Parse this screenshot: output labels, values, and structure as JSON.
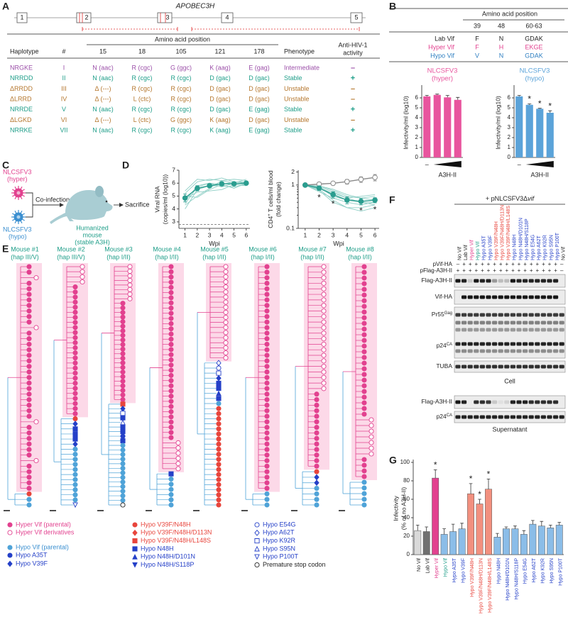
{
  "panel_labels": [
    "A",
    "B",
    "C",
    "D",
    "E",
    "F",
    "G"
  ],
  "A": {
    "gene": "APOBEC3H",
    "exons": [
      "1",
      "2",
      "3",
      "4",
      "5"
    ],
    "table": {
      "columns": [
        "Haplotype",
        "#",
        "Amino acid position",
        "Phenotype",
        [
          "Anti-HIV-1",
          "activity"
        ]
      ],
      "positions": [
        "15",
        "18",
        "105",
        "121",
        "178"
      ],
      "rows": [
        {
          "cells": [
            "NRGKE",
            "I",
            "N (aac)",
            "R (cgc)",
            "G (ggc)",
            "K (aag)",
            "E (gag)",
            "Intermediate",
            "–"
          ],
          "color": "#9b4fa8"
        },
        {
          "cells": [
            "NRRDD",
            "II",
            "N (aac)",
            "R (cgc)",
            "R (cgc)",
            "D (gac)",
            "D (gac)",
            "Stable",
            "+"
          ],
          "color": "#1f9e89"
        },
        {
          "cells": [
            "ΔRRDD",
            "III",
            "Δ (---)",
            "R (cgc)",
            "R (cgc)",
            "D (gac)",
            "D (gac)",
            "Unstable",
            "–"
          ],
          "color": "#b5772e"
        },
        {
          "cells": [
            "ΔLRRD",
            "IV",
            "Δ (---)",
            "L (ctc)",
            "R (cgc)",
            "D (gac)",
            "D (gac)",
            "Unstable",
            "–"
          ],
          "color": "#b5772e"
        },
        {
          "cells": [
            "NRRDE",
            "V",
            "N (aac)",
            "R (cgc)",
            "R (cgc)",
            "D (gac)",
            "E (gag)",
            "Stable",
            "+"
          ],
          "color": "#1f9e89"
        },
        {
          "cells": [
            "ΔLGKD",
            "VI",
            "Δ (---)",
            "L (ctc)",
            "G (ggc)",
            "K (aag)",
            "D (gac)",
            "Unstable",
            "–"
          ],
          "color": "#b5772e"
        },
        {
          "cells": [
            "NRRKE",
            "VII",
            "N (aac)",
            "R (cgc)",
            "R (cgc)",
            "K (aag)",
            "E (gag)",
            "Stable",
            "+"
          ],
          "color": "#1f9e89"
        }
      ]
    }
  },
  "B": {
    "header": "Amino acid position",
    "positions": [
      "39",
      "48",
      "60-63"
    ],
    "rows": [
      {
        "cells": [
          "Lab Vif",
          "F",
          "N",
          "GDAK"
        ],
        "color": "#222222"
      },
      {
        "cells": [
          "Hyper Vif",
          "F",
          "H",
          "EKGE"
        ],
        "color": "#e2418f"
      },
      {
        "cells": [
          "Hypo Vif",
          "V",
          "N",
          "GDAK"
        ],
        "color": "#2f7fc1"
      }
    ]
  },
  "C": {
    "virus_hyper": [
      "NLCSFV3",
      "(hyper)"
    ],
    "virus_hypo": [
      "NLCSFV3",
      "(hypo)"
    ],
    "coinfection": "Co-infection",
    "sacrifice": "Sacrifice",
    "mouse": [
      "Humanized",
      "mouse",
      "(stable A3H)"
    ]
  },
  "E": {
    "mice": [
      {
        "name": "Mouse #1",
        "hap": "(hap III/V)"
      },
      {
        "name": "Mouse #2",
        "hap": "(hap III/V)"
      },
      {
        "name": "Mouse #3",
        "hap": "(hap I/II)"
      },
      {
        "name": "Mouse #4",
        "hap": "(hap I/II)"
      },
      {
        "name": "Mouse #5",
        "hap": "(hap I/II)"
      },
      {
        "name": "Mouse #6",
        "hap": "(hap I/II)"
      },
      {
        "name": "Mouse #7",
        "hap": "(hap I/II)"
      },
      {
        "name": "Mouse #8",
        "hap": "(hap I/II)"
      }
    ],
    "legend": [
      "Hyper Vif (parental)",
      "Hyper Vif derivatives",
      "Hypo Vif (parental)",
      "Hypo A35T",
      "Hypo V39F",
      "Hypo V39F/N48H",
      "Hypo V39F/N48H/D113N",
      "Hypo V39F/N48H/L148S",
      "Hypo N48H",
      "Hypo N48H/D101N",
      "Hypo N48H/S118P",
      "Hypo E54G",
      "Hypo A62T",
      "Hypo K92R",
      "Hypo S95N",
      "Hypo P100T",
      "Premature stop codon"
    ]
  },
  "F": {
    "title": [
      "+ pNLCSFV3Δ",
      "vif"
    ],
    "lanes": [
      "No Vif",
      "Lab Vif",
      "Hyper Vif",
      "Hypo Vif",
      "Hypo A35T",
      "Hypo V39F",
      "Hypo V39F/N48H",
      "Hypo V39F/N48H/D113N",
      "Hypo V39F/N48H/L148S",
      "Hypo N48H",
      "Hypo N48H/D101N",
      "Hypo N48H/S118P",
      "Hypo E54G",
      "Hypo A62T",
      "Hypo K92R",
      "Hypo S95N",
      "Hypo P100T",
      "No Vif"
    ],
    "lane_colors": [
      "#222222",
      "#222222",
      "#e2418f",
      "#1f9e89",
      "#2540c8",
      "#2540c8",
      "#e8453c",
      "#e8453c",
      "#e8453c",
      "#2540c8",
      "#2540c8",
      "#2540c8",
      "#2540c8",
      "#2540c8",
      "#2540c8",
      "#2540c8",
      "#2540c8",
      "#222222"
    ],
    "rows": [
      {
        "label": "pVif-HA",
        "signs": [
          "–",
          "+",
          "+",
          "+",
          "+",
          "+",
          "+",
          "+",
          "+",
          "+",
          "+",
          "+",
          "+",
          "+",
          "+",
          "+",
          "+",
          "–"
        ]
      },
      {
        "label": "pFlag-A3H-II",
        "signs": [
          "+",
          "+",
          "+",
          "+",
          "+",
          "+",
          "+",
          "+",
          "+",
          "+",
          "+",
          "+",
          "+",
          "+",
          "+",
          "+",
          "+",
          "–"
        ]
      }
    ],
    "blots": [
      [
        "Flag-A3H-II"
      ],
      [
        "Vif-HA"
      ],
      [
        "Pr55",
        "Gag"
      ],
      [
        "p24",
        "CA"
      ],
      [
        "TUBA"
      ]
    ],
    "cell": "Cell",
    "sup_blots": [
      [
        "Flag-A3H-II"
      ],
      [
        "p24",
        "CA"
      ]
    ],
    "supernatant": "Supernatant"
  },
  "chart_data": [
    {
      "type": "bar",
      "title": "NLCSFV3",
      "subtitle": "(hyper)",
      "ylabel": [
        "Infectivity/ml (log10)"
      ],
      "xlabel": "A3H-II",
      "categories": [
        "–",
        null,
        null,
        null
      ],
      "values": [
        6.15,
        6.3,
        6.05,
        5.8
      ],
      "errors": [
        0.1,
        0.08,
        0.2,
        0.25
      ],
      "color": "#e8559e",
      "ylim": [
        0,
        7
      ],
      "yticks": [
        0,
        1,
        2,
        3,
        4,
        5,
        6
      ]
    },
    {
      "type": "bar",
      "title": "NLCSFV3",
      "subtitle": "(hypo)",
      "ylabel": [
        "Infectivity/ml (log10)"
      ],
      "xlabel": "A3H-II",
      "categories": [
        "–",
        null,
        null,
        null
      ],
      "values": [
        6.15,
        5.3,
        4.9,
        4.5
      ],
      "errors": [
        0.1,
        0.1,
        0.05,
        0.2
      ],
      "star_labels": [
        null,
        "*",
        "*",
        "*"
      ],
      "color": "#5ba3d9",
      "ylim": [
        0,
        7
      ],
      "yticks": [
        0,
        1,
        2,
        3,
        4,
        5,
        6
      ]
    },
    {
      "type": "line",
      "ylabel": [
        "Viral RNA",
        "(copies/ml (log10))"
      ],
      "xlabel": "Wpi",
      "x": [
        1,
        2,
        3,
        4,
        5,
        6
      ],
      "xlim": [
        0.5,
        6.3
      ],
      "xticks": [
        1,
        2,
        3,
        4,
        5,
        6
      ],
      "ylim": [
        2.5,
        7
      ],
      "yticks": [
        3,
        4,
        5,
        6,
        7
      ],
      "hline": 2.8,
      "mean": {
        "color": "#2a9d8f",
        "values": [
          4.85,
          5.6,
          5.8,
          5.95,
          5.95,
          6.0
        ],
        "errors": [
          0.3,
          0.2,
          0.15,
          0.12,
          0.1,
          0.1
        ]
      },
      "individual": {
        "color": "#8fcfc6",
        "values": [
          [
            4.3,
            5.0,
            5.6,
            6.2,
            6.3,
            6.2
          ],
          [
            4.6,
            5.8,
            6.0,
            5.9,
            6.1,
            6.0
          ],
          [
            5.2,
            6.1,
            6.3,
            6.2,
            6.0,
            6.3
          ],
          [
            4.0,
            5.5,
            5.8,
            5.8,
            5.7,
            5.9
          ],
          [
            5.4,
            6.3,
            6.2,
            6.4,
            6.1,
            6.1
          ],
          [
            4.8,
            5.3,
            5.4,
            5.5,
            5.9,
            5.8
          ],
          [
            4.4,
            5.7,
            6.0,
            5.7,
            6.0,
            5.9
          ],
          [
            5.0,
            4.9,
            5.5,
            5.9,
            5.6,
            6.0
          ]
        ]
      }
    },
    {
      "type": "line",
      "ylabel": [
        [
          "CD4",
          "+",
          " T cells/ml blood"
        ],
        [
          "(fold change)"
        ]
      ],
      "xlabel": "Wpi",
      "log_y": true,
      "x": [
        1,
        2,
        3,
        4,
        5,
        6
      ],
      "xlim": [
        0.5,
        6.3
      ],
      "xticks": [
        1,
        2,
        3,
        4,
        5,
        6
      ],
      "ylim": [
        0.1,
        2.2
      ],
      "yticks": [
        0.1,
        1,
        2
      ],
      "control": {
        "color": "#8a8a8a",
        "values": [
          1,
          1.05,
          1.1,
          1.2,
          1.35,
          1.5
        ],
        "errors": [
          0.05,
          0.1,
          0.1,
          0.15,
          0.2,
          0.25
        ]
      },
      "mean": {
        "color": "#2a9d8f",
        "values": [
          1,
          0.85,
          0.6,
          0.45,
          0.42,
          0.45
        ],
        "errors": [
          0.02,
          0.1,
          0.1,
          0.08,
          0.07,
          0.06
        ]
      },
      "star_labels": [
        null,
        "*",
        "*",
        null,
        "*",
        "*"
      ],
      "individual": {
        "color": "#8fcfc6",
        "values": [
          [
            1,
            0.9,
            0.7,
            0.5,
            0.4,
            0.35
          ],
          [
            1,
            0.95,
            0.8,
            0.6,
            0.5,
            0.55
          ],
          [
            1,
            0.8,
            0.45,
            0.3,
            0.25,
            0.3
          ],
          [
            1,
            0.85,
            0.65,
            0.5,
            0.55,
            0.6
          ],
          [
            1,
            0.7,
            0.5,
            0.4,
            0.35,
            0.4
          ],
          [
            1,
            0.9,
            0.55,
            0.45,
            0.4,
            0.4
          ],
          [
            1,
            0.95,
            0.75,
            0.55,
            0.5,
            0.45
          ],
          [
            1,
            0.75,
            0.4,
            0.3,
            0.3,
            0.35
          ]
        ]
      }
    },
    {
      "type": "bar",
      "ylabel": [
        "Infectivity",
        "(% of no A3H-II)"
      ],
      "categories": [
        "No Vif",
        "Lab Vif",
        "Hyper Vif",
        "Hypo Vif",
        "Hypo A35T",
        "Hypo V39F",
        "Hypo V39F/N48H",
        "Hypo V39F/N48H/D113N",
        "Hypo V39F/N48H/L148S",
        "Hypo N48H",
        "Hypo N48H/D101N",
        "Hypo N48H/S118P",
        "Hypo E54G",
        "Hypo A62T",
        "Hypo K92R",
        "Hypo S95N",
        "Hypo P100T"
      ],
      "values": [
        26,
        25,
        83,
        22,
        25,
        28,
        66,
        55,
        71,
        19,
        28,
        28,
        22,
        33,
        31,
        29,
        32
      ],
      "errors": [
        6,
        5,
        9,
        6,
        8,
        6,
        11,
        5,
        11,
        4,
        2,
        3,
        4,
        4,
        5,
        3,
        3
      ],
      "star_labels": [
        null,
        null,
        "*",
        null,
        null,
        null,
        "*",
        "*",
        "*",
        null,
        null,
        null,
        null,
        null,
        null,
        null,
        null
      ],
      "colors": [
        "#d9d9d9",
        "#707070",
        "#e2418f",
        "#8bbde8",
        "#8bbde8",
        "#8bbde8",
        "#f2907f",
        "#f2907f",
        "#f2907f",
        "#8bbde8",
        "#8bbde8",
        "#8bbde8",
        "#8bbde8",
        "#8bbde8",
        "#8bbde8",
        "#8bbde8",
        "#8bbde8"
      ],
      "label_colors": [
        "#222222",
        "#222222",
        "#e2418f",
        "#1f9e89",
        "#2540c8",
        "#2540c8",
        "#e8453c",
        "#e8453c",
        "#e8453c",
        "#2540c8",
        "#2540c8",
        "#2540c8",
        "#2540c8",
        "#2540c8",
        "#2540c8",
        "#2540c8",
        "#2540c8"
      ],
      "ylim": [
        0,
        100
      ],
      "yticks": [
        0,
        20,
        40,
        60,
        80,
        100
      ]
    }
  ]
}
